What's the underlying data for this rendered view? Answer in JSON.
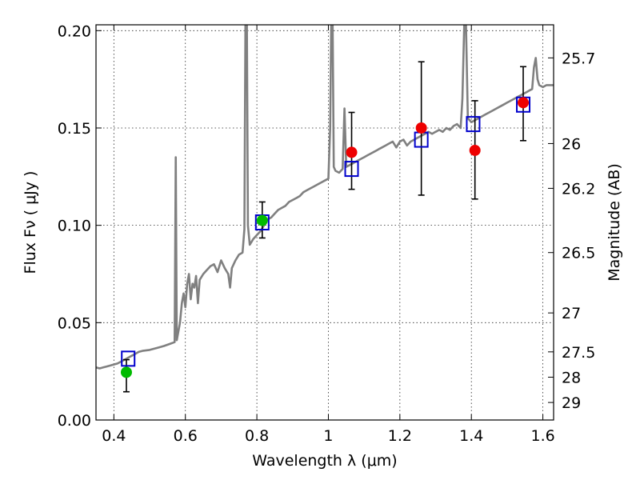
{
  "chart_data": {
    "type": "scatter",
    "title": "",
    "xlabel": "Wavelength  λ (μm)",
    "ylabel": "Flux  Fν  ( μJy )",
    "y2label": "Magnitude (AB)",
    "xlim": [
      0.35,
      1.63
    ],
    "ylim": [
      0.0,
      0.203
    ],
    "grid": true,
    "x_ticks": [
      0.4,
      0.6,
      0.8,
      1.0,
      1.2,
      1.4,
      1.6
    ],
    "x_tick_labels": [
      "0.4",
      "0.6",
      "0.8",
      "1",
      "1.2",
      "1.4",
      "1.6"
    ],
    "y_ticks": [
      0.0,
      0.05,
      0.1,
      0.15,
      0.2
    ],
    "y_tick_labels": [
      "0.00",
      "0.05",
      "0.10",
      "0.15",
      "0.20"
    ],
    "y2_ticks": [
      {
        "flux": 0.186,
        "label": "25.7"
      },
      {
        "flux": 0.142,
        "label": "26"
      },
      {
        "flux": 0.119,
        "label": "26.2"
      },
      {
        "flux": 0.086,
        "label": "26.5"
      },
      {
        "flux": 0.055,
        "label": "27"
      },
      {
        "flux": 0.035,
        "label": "27.5"
      },
      {
        "flux": 0.022,
        "label": "28"
      },
      {
        "flux": 0.009,
        "label": "29"
      }
    ],
    "colors": {
      "sed": "#808080",
      "model_box": "#0000cc",
      "green_point": "#00bb00",
      "red_point": "#ee0000",
      "errorbar": "#000000"
    },
    "series": [
      {
        "kind": "line",
        "points": [
          [
            0.35,
            0.027
          ],
          [
            0.36,
            0.0265
          ],
          [
            0.37,
            0.027
          ],
          [
            0.38,
            0.0275
          ],
          [
            0.39,
            0.028
          ],
          [
            0.4,
            0.0285
          ],
          [
            0.41,
            0.029
          ],
          [
            0.42,
            0.03
          ],
          [
            0.43,
            0.031
          ],
          [
            0.44,
            0.032
          ],
          [
            0.45,
            0.033
          ],
          [
            0.46,
            0.034
          ],
          [
            0.47,
            0.035
          ],
          [
            0.48,
            0.0355
          ],
          [
            0.5,
            0.036
          ],
          [
            0.52,
            0.037
          ],
          [
            0.54,
            0.038
          ],
          [
            0.555,
            0.039
          ],
          [
            0.57,
            0.04
          ],
          [
            0.573,
            0.135
          ],
          [
            0.576,
            0.041
          ],
          [
            0.585,
            0.05
          ],
          [
            0.59,
            0.06
          ],
          [
            0.595,
            0.065
          ],
          [
            0.6,
            0.058
          ],
          [
            0.605,
            0.07
          ],
          [
            0.61,
            0.075
          ],
          [
            0.615,
            0.062
          ],
          [
            0.62,
            0.07
          ],
          [
            0.625,
            0.068
          ],
          [
            0.63,
            0.074
          ],
          [
            0.635,
            0.06
          ],
          [
            0.64,
            0.072
          ],
          [
            0.65,
            0.075
          ],
          [
            0.66,
            0.077
          ],
          [
            0.67,
            0.079
          ],
          [
            0.68,
            0.08
          ],
          [
            0.69,
            0.076
          ],
          [
            0.7,
            0.082
          ],
          [
            0.71,
            0.078
          ],
          [
            0.72,
            0.075
          ],
          [
            0.725,
            0.068
          ],
          [
            0.73,
            0.078
          ],
          [
            0.74,
            0.082
          ],
          [
            0.75,
            0.085
          ],
          [
            0.76,
            0.086
          ],
          [
            0.765,
            0.098
          ],
          [
            0.768,
            0.203
          ],
          [
            0.772,
            0.203
          ],
          [
            0.775,
            0.1
          ],
          [
            0.78,
            0.09
          ],
          [
            0.79,
            0.093
          ],
          [
            0.8,
            0.095
          ],
          [
            0.81,
            0.097
          ],
          [
            0.82,
            0.1
          ],
          [
            0.83,
            0.103
          ],
          [
            0.84,
            0.104
          ],
          [
            0.85,
            0.106
          ],
          [
            0.86,
            0.108
          ],
          [
            0.87,
            0.109
          ],
          [
            0.88,
            0.11
          ],
          [
            0.89,
            0.112
          ],
          [
            0.9,
            0.113
          ],
          [
            0.91,
            0.114
          ],
          [
            0.92,
            0.115
          ],
          [
            0.93,
            0.117
          ],
          [
            0.94,
            0.118
          ],
          [
            0.95,
            0.119
          ],
          [
            0.96,
            0.12
          ],
          [
            0.97,
            0.121
          ],
          [
            0.98,
            0.122
          ],
          [
            0.99,
            0.123
          ],
          [
            1.0,
            0.124
          ],
          [
            1.005,
            0.15
          ],
          [
            1.008,
            0.203
          ],
          [
            1.012,
            0.203
          ],
          [
            1.015,
            0.13
          ],
          [
            1.02,
            0.128
          ],
          [
            1.03,
            0.127
          ],
          [
            1.04,
            0.129
          ],
          [
            1.045,
            0.16
          ],
          [
            1.05,
            0.13
          ],
          [
            1.06,
            0.131
          ],
          [
            1.07,
            0.132
          ],
          [
            1.08,
            0.133
          ],
          [
            1.09,
            0.134
          ],
          [
            1.1,
            0.135
          ],
          [
            1.11,
            0.136
          ],
          [
            1.12,
            0.137
          ],
          [
            1.13,
            0.138
          ],
          [
            1.14,
            0.139
          ],
          [
            1.15,
            0.14
          ],
          [
            1.16,
            0.141
          ],
          [
            1.17,
            0.142
          ],
          [
            1.18,
            0.143
          ],
          [
            1.19,
            0.14
          ],
          [
            1.2,
            0.143
          ],
          [
            1.21,
            0.144
          ],
          [
            1.22,
            0.141
          ],
          [
            1.23,
            0.143
          ],
          [
            1.24,
            0.144
          ],
          [
            1.25,
            0.145
          ],
          [
            1.26,
            0.146
          ],
          [
            1.27,
            0.147
          ],
          [
            1.28,
            0.148
          ],
          [
            1.29,
            0.147
          ],
          [
            1.3,
            0.148
          ],
          [
            1.31,
            0.149
          ],
          [
            1.32,
            0.148
          ],
          [
            1.33,
            0.15
          ],
          [
            1.34,
            0.149
          ],
          [
            1.35,
            0.151
          ],
          [
            1.36,
            0.152
          ],
          [
            1.37,
            0.15
          ],
          [
            1.375,
            0.165
          ],
          [
            1.38,
            0.203
          ],
          [
            1.385,
            0.203
          ],
          [
            1.39,
            0.155
          ],
          [
            1.4,
            0.153
          ],
          [
            1.41,
            0.154
          ],
          [
            1.42,
            0.155
          ],
          [
            1.43,
            0.156
          ],
          [
            1.44,
            0.157
          ],
          [
            1.45,
            0.158
          ],
          [
            1.46,
            0.159
          ],
          [
            1.47,
            0.16
          ],
          [
            1.48,
            0.161
          ],
          [
            1.49,
            0.162
          ],
          [
            1.5,
            0.163
          ],
          [
            1.51,
            0.164
          ],
          [
            1.52,
            0.165
          ],
          [
            1.53,
            0.166
          ],
          [
            1.54,
            0.167
          ],
          [
            1.55,
            0.168
          ],
          [
            1.56,
            0.169
          ],
          [
            1.57,
            0.17
          ],
          [
            1.575,
            0.181
          ],
          [
            1.58,
            0.186
          ],
          [
            1.585,
            0.175
          ],
          [
            1.59,
            0.172
          ],
          [
            1.6,
            0.171
          ],
          [
            1.61,
            0.172
          ],
          [
            1.63,
            0.172
          ]
        ]
      },
      {
        "kind": "model_boxes",
        "points": [
          [
            0.44,
            0.0315
          ],
          [
            0.815,
            0.1015
          ],
          [
            1.065,
            0.129
          ],
          [
            1.26,
            0.144
          ],
          [
            1.405,
            0.152
          ],
          [
            1.545,
            0.162
          ]
        ]
      },
      {
        "kind": "observed_green",
        "points": [
          {
            "x": 0.435,
            "y": 0.0245,
            "err_low": 0.0145,
            "err_high": 0.031
          },
          {
            "x": 0.815,
            "y": 0.1025,
            "err_low": 0.0935,
            "err_high": 0.112
          }
        ]
      },
      {
        "kind": "observed_red",
        "points": [
          {
            "x": 1.065,
            "y": 0.1375,
            "err_low": 0.1185,
            "err_high": 0.158
          },
          {
            "x": 1.26,
            "y": 0.15,
            "err_low": 0.1155,
            "err_high": 0.184
          },
          {
            "x": 1.41,
            "y": 0.1385,
            "err_low": 0.1135,
            "err_high": 0.164
          },
          {
            "x": 1.545,
            "y": 0.163,
            "err_low": 0.1435,
            "err_high": 0.1815
          }
        ]
      }
    ]
  }
}
